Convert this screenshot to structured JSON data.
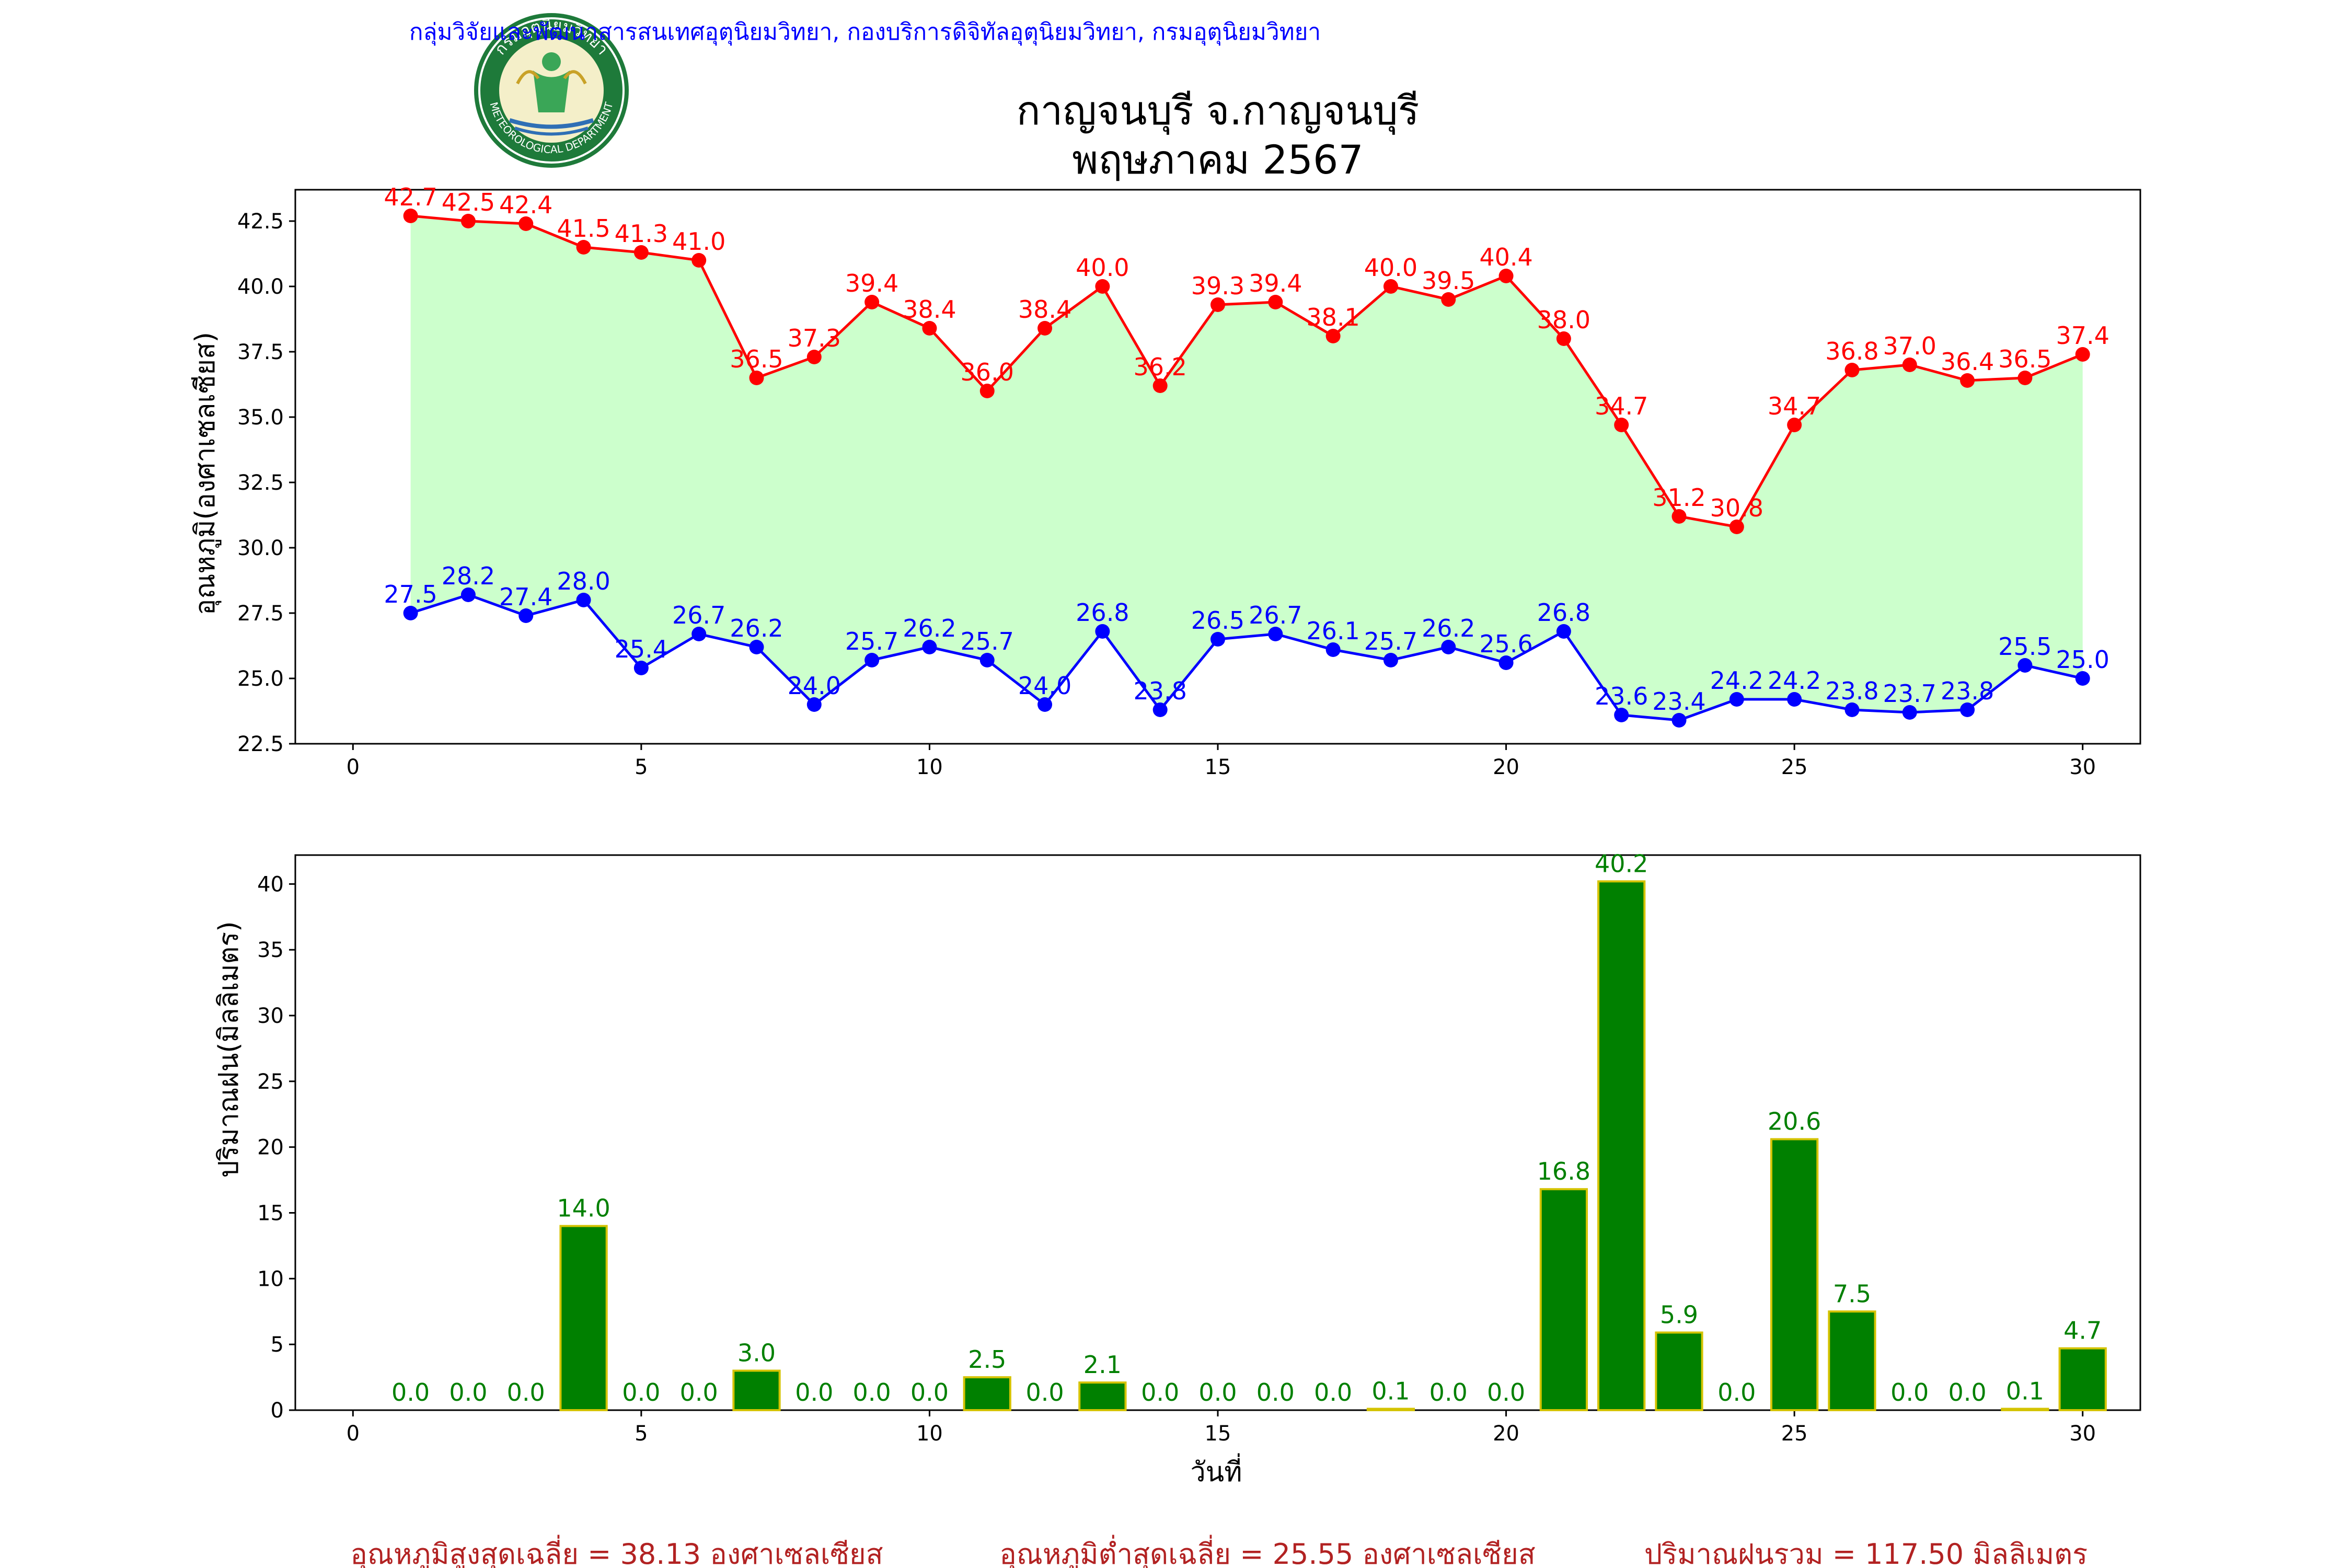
{
  "header": {
    "department": "กลุ่มวิจัยและพัฒนาสารสนเทศอุตุนิยมวิทยา, กองบริการดิจิทัลอุตุนิยมวิทยา, กรมอุตุนิยมวิทยา",
    "title_line1": "กาญจนบุรี จ.กาญจนบุรี",
    "title_line2": "พฤษภาคม 2567",
    "logo": {
      "icon": "meteorological-department-seal-icon",
      "text_top": "กรมอุตุนิยมวิทยา",
      "text_bottom": "METEOROLOGICAL DEPARTMENT"
    }
  },
  "colors": {
    "max_line": "#ff0000",
    "min_line": "#0000ff",
    "fill_between": "#ccffcc",
    "rain_bar": "#008000",
    "rain_bar_edge": "#d4c300",
    "summary_text": "#b22222",
    "department_text": "#0000ff"
  },
  "chart_data": [
    {
      "type": "line",
      "ylabel": "อุณหภูมิ(องศาเซลเซียส)",
      "xlabel": "",
      "xlim": [
        -1,
        31
      ],
      "ylim": [
        22.5,
        43.7
      ],
      "xticks": [
        0,
        5,
        10,
        15,
        20,
        25,
        30
      ],
      "yticks": [
        22.5,
        25.0,
        27.5,
        30.0,
        32.5,
        35.0,
        37.5,
        40.0,
        42.5
      ],
      "x": [
        1,
        2,
        3,
        4,
        5,
        6,
        7,
        8,
        9,
        10,
        11,
        12,
        13,
        14,
        15,
        16,
        17,
        18,
        19,
        20,
        21,
        22,
        23,
        24,
        25,
        26,
        27,
        28,
        29,
        30
      ],
      "fill_between": true,
      "series": [
        {
          "values": [
            42.7,
            42.5,
            42.4,
            41.5,
            41.3,
            41.0,
            36.5,
            37.3,
            39.4,
            38.4,
            36.0,
            38.4,
            40.0,
            36.2,
            39.3,
            39.4,
            38.1,
            40.0,
            39.5,
            40.4,
            38.0,
            34.7,
            31.2,
            30.8,
            34.7,
            36.8,
            37.0,
            36.4,
            36.5,
            37.4
          ]
        },
        {
          "values": [
            27.5,
            28.2,
            27.4,
            28.0,
            25.4,
            26.7,
            26.2,
            24.0,
            25.7,
            26.2,
            25.7,
            24.0,
            26.8,
            23.8,
            26.5,
            26.7,
            26.1,
            25.7,
            26.2,
            25.6,
            26.8,
            23.6,
            23.4,
            24.2,
            24.2,
            23.8,
            23.7,
            23.8,
            25.5,
            25.0
          ]
        }
      ]
    },
    {
      "type": "bar",
      "ylabel": "ปริมาณฝน(มิลลิเมตร)",
      "xlabel": "วันที่",
      "xlim": [
        -1,
        31
      ],
      "ylim": [
        0,
        42.2
      ],
      "xticks": [
        0,
        5,
        10,
        15,
        20,
        25,
        30
      ],
      "yticks": [
        0,
        5,
        10,
        15,
        20,
        25,
        30,
        35,
        40
      ],
      "x": [
        1,
        2,
        3,
        4,
        5,
        6,
        7,
        8,
        9,
        10,
        11,
        12,
        13,
        14,
        15,
        16,
        17,
        18,
        19,
        20,
        21,
        22,
        23,
        24,
        25,
        26,
        27,
        28,
        29,
        30
      ],
      "series": [
        {
          "values": [
            0.0,
            0.0,
            0.0,
            14.0,
            0.0,
            0.0,
            3.0,
            0.0,
            0.0,
            0.0,
            2.5,
            0.0,
            2.1,
            0.0,
            0.0,
            0.0,
            0.0,
            0.1,
            0.0,
            0.0,
            16.8,
            40.2,
            5.9,
            0.0,
            20.6,
            7.5,
            0.0,
            0.0,
            0.1,
            4.7
          ]
        }
      ]
    }
  ],
  "summary": {
    "avg_max": "อุณหภูมิสูงสุดเฉลี่ย = 38.13 องศาเซลเซียส",
    "avg_min": "อุณหภูมิต่ำสุดเฉลี่ย = 25.55 องศาเซลเซียส",
    "total_rain": "ปริมาณฝนรวม = 117.50 มิลลิเมตร"
  }
}
